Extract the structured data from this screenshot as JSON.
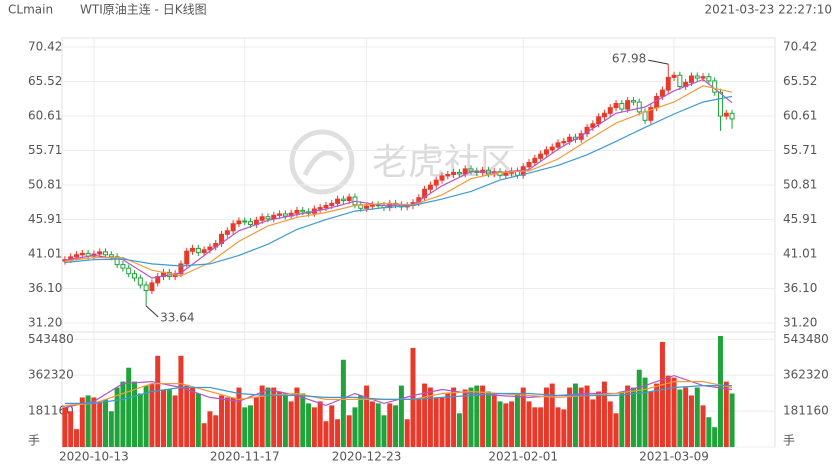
{
  "chart_data": {
    "type": "candlestick",
    "symbol": "CLmain",
    "title": "WTI原油主连 - 日K线图",
    "timestamp": "2021-03-23 22:27:10",
    "watermark": "老虎社区",
    "up_color": "#e8392b",
    "down_color": "#1fa33a",
    "open": [
      40.0,
      40.2,
      40.6,
      40.9,
      41.1,
      40.7,
      41.0,
      41.3,
      40.9,
      40.6,
      39.5,
      39.0,
      38.2,
      37.6,
      36.6,
      35.8,
      36.9,
      37.8,
      38.4,
      37.8,
      38.2,
      39.6,
      41.4,
      41.8,
      41.2,
      41.6,
      42.0,
      42.5,
      43.8,
      44.3,
      45.3,
      45.7,
      45.6,
      45.2,
      45.8,
      46.3,
      46.0,
      46.5,
      46.7,
      46.4,
      46.8,
      47.2,
      47.0,
      46.8,
      47.4,
      47.6,
      47.9,
      48.2,
      48.8,
      48.6,
      49.1,
      48.0,
      47.5,
      47.8,
      48.0,
      47.9,
      47.6,
      48.2,
      48.0,
      47.7,
      47.9,
      48.3,
      49.0,
      50.2,
      50.8,
      51.5,
      52.1,
      52.3,
      52.6,
      52.4,
      53.1,
      52.8,
      52.6,
      52.9,
      52.4,
      52.7,
      52.2,
      52.5,
      52.8,
      52.2,
      53.4,
      54.0,
      54.6,
      55.2,
      55.8,
      56.2,
      56.8,
      57.0,
      57.6,
      57.3,
      58.1,
      59.0,
      59.5,
      60.5,
      61.0,
      61.8,
      62.4,
      61.6,
      62.8,
      62.6,
      61.2,
      60.0,
      61.8,
      63.4,
      64.3,
      66.1,
      66.4,
      64.8,
      65.4,
      66.3,
      66.0,
      66.2,
      65.6,
      64.0,
      60.6,
      61.0
    ],
    "high": [
      40.7,
      41.1,
      41.4,
      41.6,
      41.6,
      41.5,
      41.8,
      41.8,
      41.4,
      41.1,
      40.0,
      39.5,
      38.7,
      38.1,
      37.1,
      37.4,
      38.3,
      38.9,
      38.9,
      38.7,
      40.1,
      41.9,
      42.3,
      42.3,
      42.1,
      42.5,
      43.0,
      44.3,
      44.8,
      45.8,
      46.2,
      46.2,
      46.1,
      46.3,
      46.8,
      46.8,
      47.0,
      47.2,
      47.2,
      47.3,
      47.7,
      47.7,
      47.5,
      47.9,
      48.1,
      48.4,
      48.7,
      49.3,
      49.3,
      49.6,
      49.6,
      48.5,
      48.3,
      48.5,
      48.5,
      48.4,
      48.7,
      48.7,
      48.5,
      48.4,
      48.8,
      49.5,
      50.7,
      51.3,
      52.0,
      52.6,
      52.8,
      53.1,
      53.1,
      53.6,
      53.6,
      53.3,
      53.4,
      53.4,
      53.2,
      53.2,
      53.0,
      53.3,
      53.3,
      53.9,
      54.5,
      55.1,
      55.7,
      56.3,
      56.7,
      57.3,
      57.5,
      58.1,
      58.1,
      58.6,
      59.5,
      60.0,
      61.0,
      61.5,
      62.3,
      62.9,
      62.9,
      63.3,
      63.3,
      63.1,
      61.7,
      62.3,
      63.9,
      64.8,
      67.98,
      66.9,
      66.9,
      65.9,
      66.8,
      66.8,
      66.7,
      66.7,
      66.1,
      64.5,
      61.5,
      61.5
    ],
    "low": [
      39.5,
      39.7,
      40.1,
      40.4,
      40.2,
      40.2,
      40.5,
      40.4,
      40.1,
      39.0,
      38.5,
      37.7,
      37.1,
      36.1,
      33.64,
      35.3,
      36.4,
      37.3,
      37.3,
      37.3,
      37.7,
      39.1,
      40.9,
      40.7,
      40.7,
      41.1,
      41.5,
      42.0,
      43.3,
      43.8,
      44.8,
      45.1,
      44.7,
      44.7,
      45.3,
      45.5,
      45.5,
      46.0,
      45.9,
      45.9,
      46.3,
      46.5,
      46.3,
      46.3,
      46.9,
      47.1,
      47.4,
      47.7,
      48.1,
      48.1,
      47.5,
      47.0,
      47.0,
      47.3,
      47.4,
      47.1,
      47.1,
      47.5,
      47.2,
      47.2,
      47.4,
      47.8,
      48.5,
      49.7,
      50.3,
      51.0,
      51.6,
      51.8,
      51.9,
      51.9,
      52.3,
      52.1,
      52.1,
      51.9,
      51.9,
      51.7,
      51.7,
      52.0,
      51.7,
      51.7,
      52.9,
      53.5,
      54.1,
      54.7,
      55.3,
      55.7,
      56.3,
      56.5,
      56.8,
      56.8,
      57.6,
      58.5,
      59.0,
      60.0,
      60.5,
      61.3,
      61.1,
      61.1,
      62.1,
      60.7,
      59.5,
      59.5,
      61.3,
      62.9,
      63.8,
      65.6,
      64.3,
      64.3,
      64.9,
      65.5,
      65.5,
      65.1,
      63.5,
      58.5,
      60.1,
      58.8
    ],
    "close": [
      40.2,
      40.6,
      40.9,
      41.1,
      40.7,
      41.0,
      41.3,
      40.9,
      40.6,
      39.5,
      39.0,
      38.2,
      37.6,
      36.6,
      35.8,
      36.9,
      37.8,
      38.4,
      37.8,
      38.2,
      39.6,
      41.4,
      41.8,
      41.2,
      41.6,
      42.0,
      42.5,
      43.8,
      44.3,
      45.3,
      45.7,
      45.6,
      45.2,
      45.8,
      46.3,
      46.0,
      46.5,
      46.7,
      46.4,
      46.8,
      47.2,
      47.0,
      46.8,
      47.4,
      47.6,
      47.9,
      48.2,
      48.8,
      48.6,
      49.1,
      48.0,
      47.5,
      47.8,
      48.0,
      47.9,
      47.6,
      48.2,
      48.0,
      47.7,
      47.9,
      48.3,
      49.0,
      50.2,
      50.8,
      51.5,
      52.1,
      52.3,
      52.6,
      52.4,
      53.1,
      52.8,
      52.6,
      52.9,
      52.4,
      52.7,
      52.2,
      52.5,
      52.8,
      52.2,
      53.4,
      54.0,
      54.6,
      55.2,
      55.8,
      56.2,
      56.8,
      57.0,
      57.6,
      57.3,
      58.1,
      59.0,
      59.5,
      60.5,
      61.0,
      61.8,
      62.4,
      61.6,
      62.8,
      62.6,
      61.2,
      60.0,
      61.8,
      63.4,
      64.3,
      66.1,
      66.4,
      64.8,
      65.4,
      66.3,
      66.0,
      66.2,
      65.6,
      64.0,
      60.6,
      61.0,
      60.2
    ],
    "volume": [
      200000,
      180000,
      90000,
      250000,
      260000,
      250000,
      230000,
      240000,
      180000,
      300000,
      330000,
      400000,
      330000,
      270000,
      310000,
      320000,
      460000,
      290000,
      290000,
      260000,
      460000,
      310000,
      300000,
      270000,
      120000,
      180000,
      160000,
      260000,
      250000,
      250000,
      300000,
      200000,
      210000,
      250000,
      310000,
      300000,
      300000,
      280000,
      270000,
      230000,
      300000,
      270000,
      220000,
      200000,
      230000,
      130000,
      210000,
      140000,
      440000,
      160000,
      200000,
      260000,
      310000,
      230000,
      220000,
      160000,
      220000,
      210000,
      310000,
      140000,
      500000,
      240000,
      320000,
      300000,
      250000,
      250000,
      270000,
      300000,
      170000,
      290000,
      300000,
      310000,
      310000,
      280000,
      260000,
      230000,
      220000,
      230000,
      270000,
      300000,
      230000,
      200000,
      200000,
      300000,
      320000,
      200000,
      190000,
      300000,
      320000,
      300000,
      310000,
      240000,
      280000,
      330000,
      230000,
      170000,
      280000,
      310000,
      300000,
      390000,
      350000,
      280000,
      320000,
      530000,
      360000,
      350000,
      290000,
      300000,
      260000,
      300000,
      210000,
      150000,
      100000,
      560000,
      330000,
      270000
    ],
    "xlim": [
      -0.5,
      122.4
    ],
    "xticks": [
      {
        "value": 5,
        "label": "2020-10-13"
      },
      {
        "value": 31,
        "label": "2020-11-17"
      },
      {
        "value": 52,
        "label": "2020-12-23"
      },
      {
        "value": 79,
        "label": "2021-02-01"
      },
      {
        "value": 105,
        "label": "2021-03-09"
      }
    ],
    "ylim": [
      31.2,
      70.42
    ],
    "yticks": [
      {
        "value": 31.2,
        "label": "31.20"
      },
      {
        "value": 36.1,
        "label": "36.10"
      },
      41.01,
      45.91,
      50.81,
      55.71,
      60.61,
      65.52,
      70.42
    ],
    "volume_ylim": [
      0,
      560000
    ],
    "volume_ticks": [
      {
        "value": 0,
        "label": "手"
      },
      181160,
      362320,
      543480
    ],
    "ma_x": [
      0,
      5,
      10,
      15,
      20,
      25,
      30,
      35,
      40,
      45,
      50,
      55,
      60,
      65,
      70,
      75,
      80,
      85,
      90,
      95,
      100,
      105,
      110,
      115
    ],
    "ma_lines": [
      {
        "color": "#b455c8",
        "values": [
          40.1,
          40.8,
          40.2,
          37.6,
          38.3,
          41.4,
          44.3,
          45.8,
          46.6,
          47.4,
          48.5,
          47.9,
          48.0,
          50.7,
          52.7,
          52.6,
          53.0,
          55.9,
          58.3,
          61.0,
          61.9,
          64.2,
          65.8,
          62.5
        ]
      },
      {
        "color": "#f29a3c",
        "values": [
          40.0,
          40.5,
          40.5,
          38.7,
          37.9,
          39.8,
          42.8,
          45.0,
          46.2,
          46.9,
          47.9,
          48.2,
          48.0,
          49.4,
          51.7,
          52.6,
          52.8,
          54.5,
          57.1,
          59.6,
          61.2,
          62.6,
          64.9,
          64.0
        ]
      },
      {
        "color": "#3d9ad1",
        "values": [
          39.8,
          40.2,
          40.3,
          39.6,
          39.3,
          39.6,
          40.8,
          42.4,
          44.5,
          45.9,
          47.1,
          47.6,
          47.9,
          48.8,
          49.9,
          51.5,
          52.5,
          53.6,
          55.1,
          57.0,
          59.0,
          60.9,
          62.6,
          63.4
        ]
      }
    ],
    "volume_ma_lines": [
      {
        "color": "#b455c8",
        "values": [
          200000,
          230000,
          320000,
          330000,
          300000,
          250000,
          230000,
          290000,
          260000,
          210000,
          270000,
          220000,
          260000,
          290000,
          270000,
          260000,
          250000,
          260000,
          270000,
          270000,
          310000,
          360000,
          310000,
          290000
        ]
      },
      {
        "color": "#f29a3c",
        "values": [
          210000,
          220000,
          270000,
          320000,
          320000,
          280000,
          240000,
          260000,
          270000,
          240000,
          240000,
          240000,
          240000,
          270000,
          280000,
          270000,
          260000,
          250000,
          260000,
          270000,
          290000,
          330000,
          330000,
          300000
        ]
      },
      {
        "color": "#3d9ad1",
        "values": [
          220000,
          220000,
          240000,
          280000,
          300000,
          300000,
          270000,
          260000,
          260000,
          250000,
          250000,
          240000,
          240000,
          250000,
          260000,
          270000,
          270000,
          260000,
          260000,
          260000,
          275000,
          300000,
          310000,
          310000
        ]
      }
    ]
  }
}
